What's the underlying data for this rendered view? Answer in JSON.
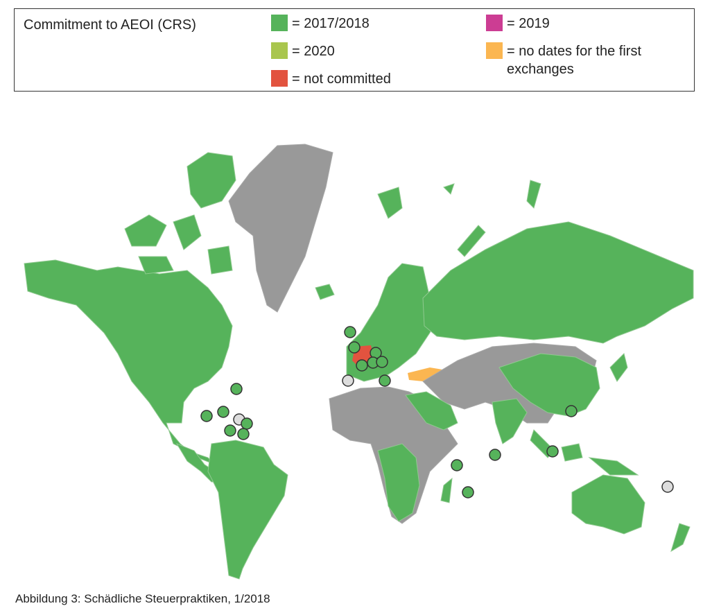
{
  "legend": {
    "title": "Commitment to AEOI (CRS)",
    "items": [
      {
        "label": "= 2017/2018",
        "color": "#56b35b"
      },
      {
        "label": "= 2019",
        "color": "#cc3d93"
      },
      {
        "label": "= 2020",
        "color": "#a9c64e"
      },
      {
        "label": "= no dates for the first exchanges",
        "color": "#fbb651"
      },
      {
        "label": "= not committed",
        "color": "#e2533f"
      }
    ]
  },
  "caption": "Abbildung 3: Schädliche Steuerpraktiken, 1/2018"
}
